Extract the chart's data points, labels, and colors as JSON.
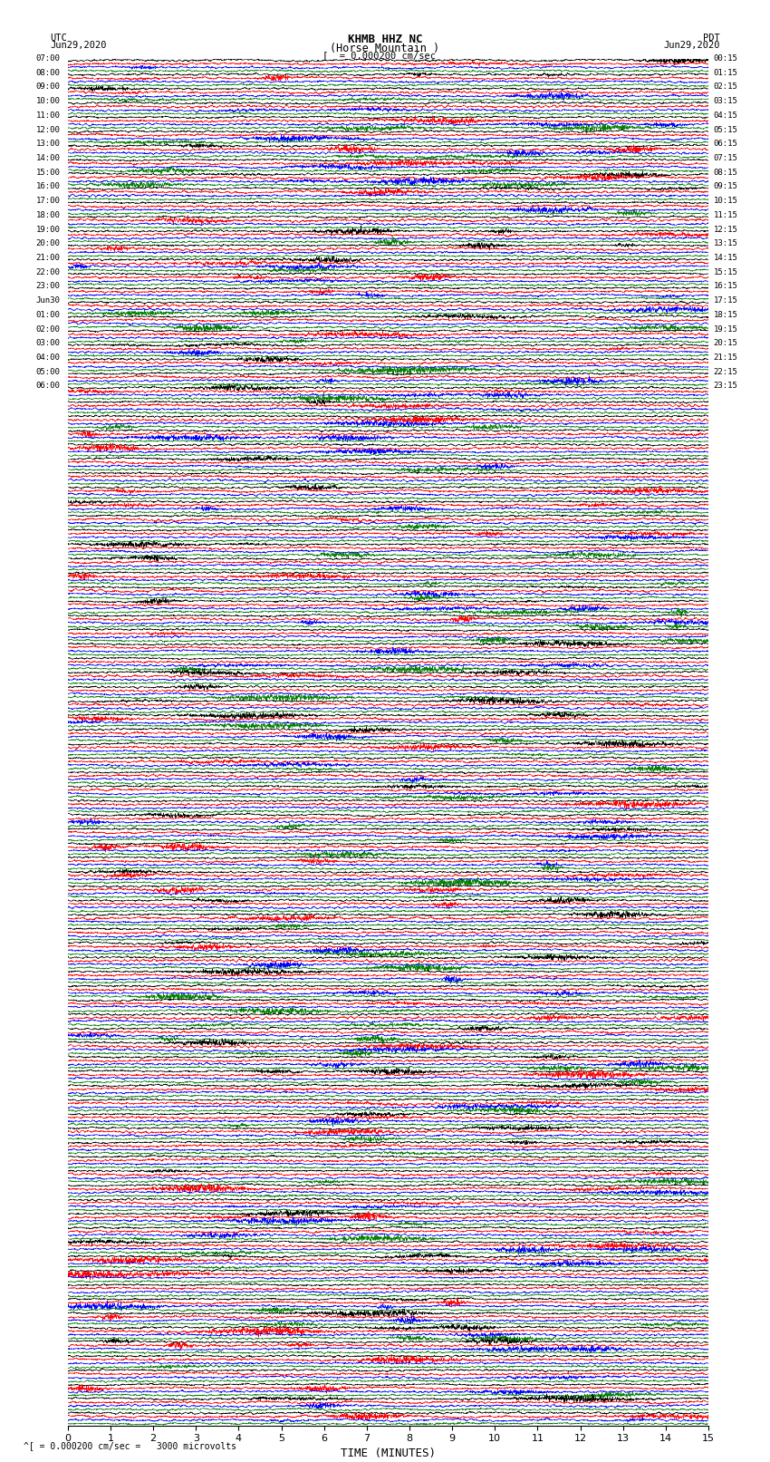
{
  "title_line1": "KHMB HHZ NC",
  "title_line2": "(Horse Mountain )",
  "scale_label": "= 0.000200 cm/sec",
  "utc_label": "UTC",
  "pdt_label": "PDT",
  "date_left": "Jun29,2020",
  "date_right": "Jun29,2020",
  "xlabel": "TIME (MINUTES)",
  "footnote": "^[ = 0.000200 cm/sec =   3000 microvolts",
  "xlim": [
    0,
    15
  ],
  "xticks": [
    0,
    1,
    2,
    3,
    4,
    5,
    6,
    7,
    8,
    9,
    10,
    11,
    12,
    13,
    14,
    15
  ],
  "trace_colors": [
    "black",
    "red",
    "blue",
    "green"
  ],
  "bg_color": "white",
  "utc_times_left": [
    "07:00",
    "",
    "",
    "",
    "08:00",
    "",
    "",
    "",
    "09:00",
    "",
    "",
    "",
    "10:00",
    "",
    "",
    "",
    "11:00",
    "",
    "",
    "",
    "12:00",
    "",
    "",
    "",
    "13:00",
    "",
    "",
    "",
    "14:00",
    "",
    "",
    "",
    "15:00",
    "",
    "",
    "",
    "16:00",
    "",
    "",
    "",
    "17:00",
    "",
    "",
    "",
    "18:00",
    "",
    "",
    "",
    "19:00",
    "",
    "",
    "",
    "20:00",
    "",
    "",
    "",
    "21:00",
    "",
    "",
    "",
    "22:00",
    "",
    "",
    "",
    "23:00",
    "",
    "",
    "",
    "Jun30",
    "",
    "",
    "",
    "01:00",
    "",
    "",
    "",
    "02:00",
    "",
    "",
    "",
    "03:00",
    "",
    "",
    "",
    "04:00",
    "",
    "",
    "",
    "05:00",
    "",
    "",
    "",
    "06:00",
    "",
    "",
    ""
  ],
  "pdt_times_right": [
    "00:15",
    "",
    "",
    "",
    "01:15",
    "",
    "",
    "",
    "02:15",
    "",
    "",
    "",
    "03:15",
    "",
    "",
    "",
    "04:15",
    "",
    "",
    "",
    "05:15",
    "",
    "",
    "",
    "06:15",
    "",
    "",
    "",
    "07:15",
    "",
    "",
    "",
    "08:15",
    "",
    "",
    "",
    "09:15",
    "",
    "",
    "",
    "10:15",
    "",
    "",
    "",
    "11:15",
    "",
    "",
    "",
    "12:15",
    "",
    "",
    "",
    "13:15",
    "",
    "",
    "",
    "14:15",
    "",
    "",
    "",
    "15:15",
    "",
    "",
    "",
    "16:15",
    "",
    "",
    "",
    "17:15",
    "",
    "",
    "",
    "18:15",
    "",
    "",
    "",
    "19:15",
    "",
    "",
    "",
    "20:15",
    "",
    "",
    "",
    "21:15",
    "",
    "",
    "",
    "22:15",
    "",
    "",
    "",
    "23:15",
    "",
    "",
    ""
  ],
  "num_rows": 96,
  "traces_per_row": 4,
  "noise_seed": 42
}
